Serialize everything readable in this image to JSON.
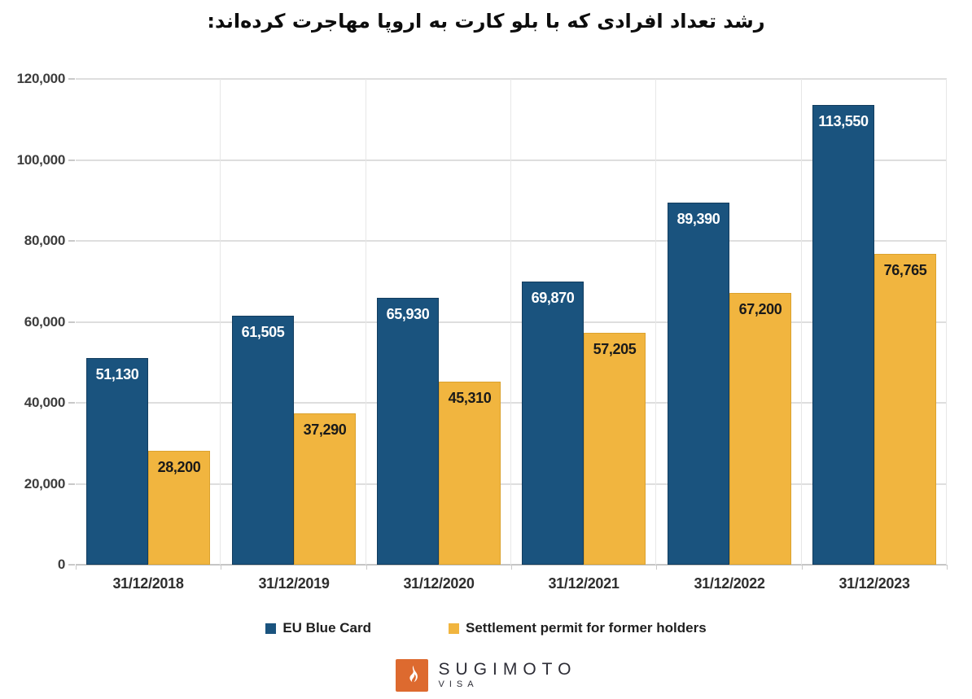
{
  "title": "رشد تعداد افرادی که با بلو کارت به اروپا مهاجرت کرده‌اند:",
  "chart_data": {
    "type": "bar",
    "title": "رشد تعداد افرادی که با بلو کارت به اروپا مهاجرت کرده‌اند:",
    "categories": [
      "31/12/2018",
      "31/12/2019",
      "31/12/2020",
      "31/12/2021",
      "31/12/2022",
      "31/12/2023"
    ],
    "series": [
      {
        "name": "EU Blue Card",
        "color": "#1a537e",
        "label_color": "#ffffff",
        "values": [
          51130,
          61505,
          65930,
          69870,
          89390,
          113550
        ],
        "labels": [
          "51,130",
          "61,505",
          "65,930",
          "69,870",
          "89,390",
          "113,550"
        ]
      },
      {
        "name": "Settlement permit for former holders",
        "color": "#f1b53f",
        "label_color": "#1a1a1a",
        "values": [
          28200,
          37290,
          45310,
          57205,
          67200,
          76765
        ],
        "labels": [
          "28,200",
          "37,290",
          "45,310",
          "57,205",
          "67,200",
          "76,765"
        ]
      }
    ],
    "ylim": [
      0,
      120000
    ],
    "ytick_step": 20000,
    "ytick_labels": [
      "120,000",
      "100,000",
      "80,000",
      "60,000",
      "40,000",
      "20,000",
      "0"
    ],
    "xlabel": "",
    "ylabel": "",
    "grid": true,
    "legend_position": "bottom"
  },
  "footer": {
    "brand": "SUGIMOTO",
    "sub": "VISA",
    "logo_color": "#dd6a2f"
  }
}
